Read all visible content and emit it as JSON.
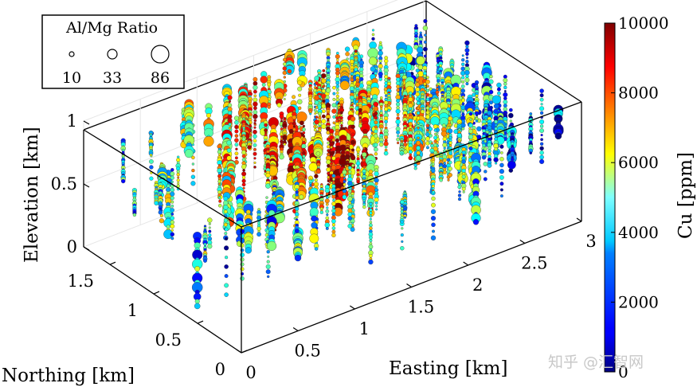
{
  "chart_data": {
    "type": "scatter3d",
    "title": "",
    "xlabel": "Easting [km]",
    "ylabel": "Northing [km]",
    "zlabel": "Elevation [km]",
    "xlim": [
      0,
      3
    ],
    "ylim": [
      0,
      1.8
    ],
    "zlim": [
      0,
      1
    ],
    "x_ticks": [
      "0",
      "0.5",
      "1",
      "1.5",
      "2",
      "2.5",
      "3"
    ],
    "y_ticks": [
      "0",
      "0.5",
      "1",
      "1.5"
    ],
    "z_ticks": [
      "0",
      "0.5",
      "1"
    ],
    "x_tick_values": [
      0,
      0.5,
      1,
      1.5,
      2,
      2.5,
      3
    ],
    "y_tick_values": [
      0,
      0.5,
      1,
      1.5
    ],
    "z_tick_values": [
      0,
      0.5,
      1
    ],
    "color_variable": "Cu [ppm]",
    "colorbar": {
      "label": "Cu [ppm]",
      "min": 0,
      "max": 10000,
      "ticks": [
        "0",
        "2000",
        "4000",
        "6000",
        "8000",
        "10000"
      ],
      "tick_values": [
        0,
        2000,
        4000,
        6000,
        8000,
        10000
      ],
      "colormap": "jet"
    },
    "size_legend": {
      "title": "Al/Mg Ratio",
      "entries": [
        "10",
        "33",
        "86"
      ],
      "entry_values": [
        10,
        33,
        86
      ]
    },
    "series_description": "Drill-hole samples plotted along vertical traces; color encodes Cu concentration, marker size encodes Al/Mg ratio.",
    "grid": true
  },
  "watermark": "知乎 @汇智网"
}
